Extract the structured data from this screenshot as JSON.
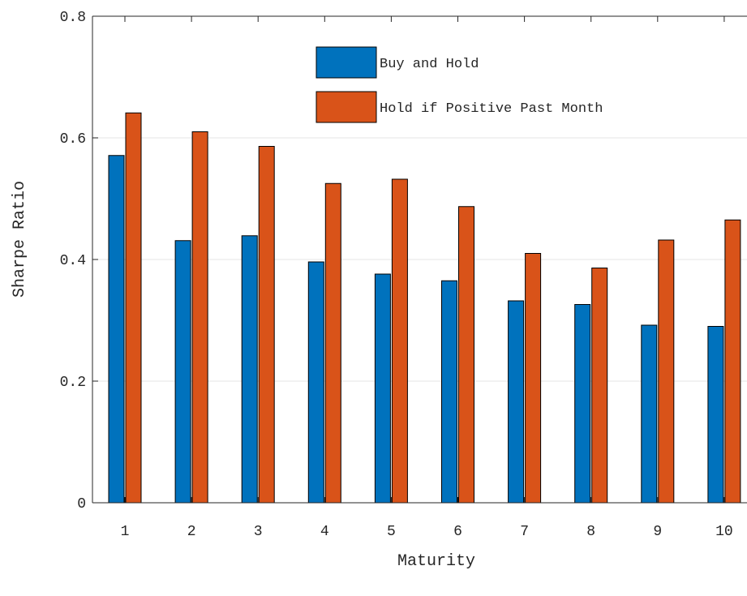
{
  "chart_data": {
    "type": "bar",
    "title": "",
    "xlabel": "Maturity",
    "ylabel": "Sharpe Ratio",
    "categories": [
      "1",
      "2",
      "3",
      "4",
      "5",
      "6",
      "7",
      "8",
      "9",
      "10"
    ],
    "series": [
      {
        "name": "Buy and Hold",
        "color": "#0072BD",
        "values": [
          0.571,
          0.431,
          0.439,
          0.396,
          0.376,
          0.365,
          0.332,
          0.326,
          0.292,
          0.29
        ]
      },
      {
        "name": "Hold if Positive Past Month",
        "color": "#D95319",
        "values": [
          0.641,
          0.61,
          0.586,
          0.525,
          0.532,
          0.487,
          0.41,
          0.386,
          0.432,
          0.465
        ]
      }
    ],
    "ylim": [
      0,
      0.8
    ],
    "yticks": [
      "0",
      "0.2",
      "0.4",
      "0.6",
      "0.8"
    ],
    "grid": "y",
    "legend_position": "top"
  }
}
